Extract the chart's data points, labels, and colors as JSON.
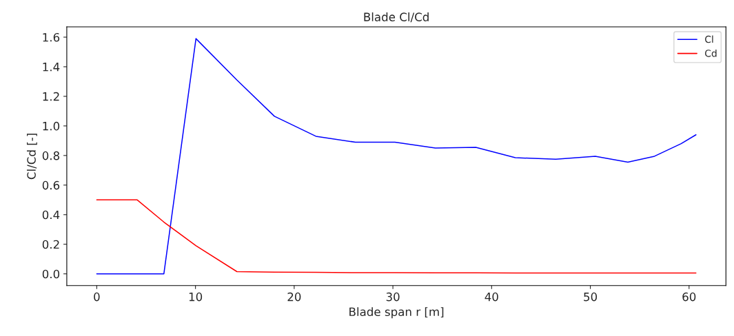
{
  "chart_data": {
    "type": "line",
    "title": "Blade Cl/Cd",
    "xlabel": "Blade span r [m]",
    "ylabel": "Cl/Cd [-]",
    "x": [
      0,
      4.1,
      6.8,
      10.05,
      14.2,
      18.0,
      22.2,
      26.2,
      30.2,
      34.3,
      38.4,
      42.4,
      46.5,
      50.5,
      53.8,
      56.5,
      59.2,
      60.7
    ],
    "series": [
      {
        "name": "Cl",
        "color": "#0000ff",
        "values": [
          0,
          0,
          0,
          1.59,
          1.31,
          1.065,
          0.93,
          0.89,
          0.89,
          0.85,
          0.855,
          0.785,
          0.775,
          0.795,
          0.755,
          0.795,
          0.88,
          0.94
        ]
      },
      {
        "name": "Cd",
        "color": "#ff0000",
        "values": [
          0.5,
          0.5,
          0.35,
          0.19,
          0.015,
          0.012,
          0.01,
          0.008,
          0.008,
          0.007,
          0.007,
          0.006,
          0.006,
          0.006,
          0.006,
          0.006,
          0.006,
          0.006
        ]
      }
    ],
    "xlim": [
      -3.035,
      63.735
    ],
    "ylim": [
      -0.0795,
      1.6695
    ],
    "xticks": [
      0,
      10,
      20,
      30,
      40,
      50,
      60
    ],
    "yticks": [
      {
        "value": 0,
        "label": "0.0"
      },
      {
        "value": 0.2,
        "label": "0.2"
      },
      {
        "value": 0.4,
        "label": "0.4"
      },
      {
        "value": 0.6,
        "label": "0.6"
      },
      {
        "value": 0.8,
        "label": "0.8"
      },
      {
        "value": 1.0,
        "label": "1.0"
      },
      {
        "value": 1.2,
        "label": "1.2"
      },
      {
        "value": 1.4,
        "label": "1.4"
      },
      {
        "value": 1.6,
        "label": "1.6"
      }
    ],
    "legend": "top right",
    "grid": false,
    "marker": "none",
    "line_style": "solid"
  }
}
